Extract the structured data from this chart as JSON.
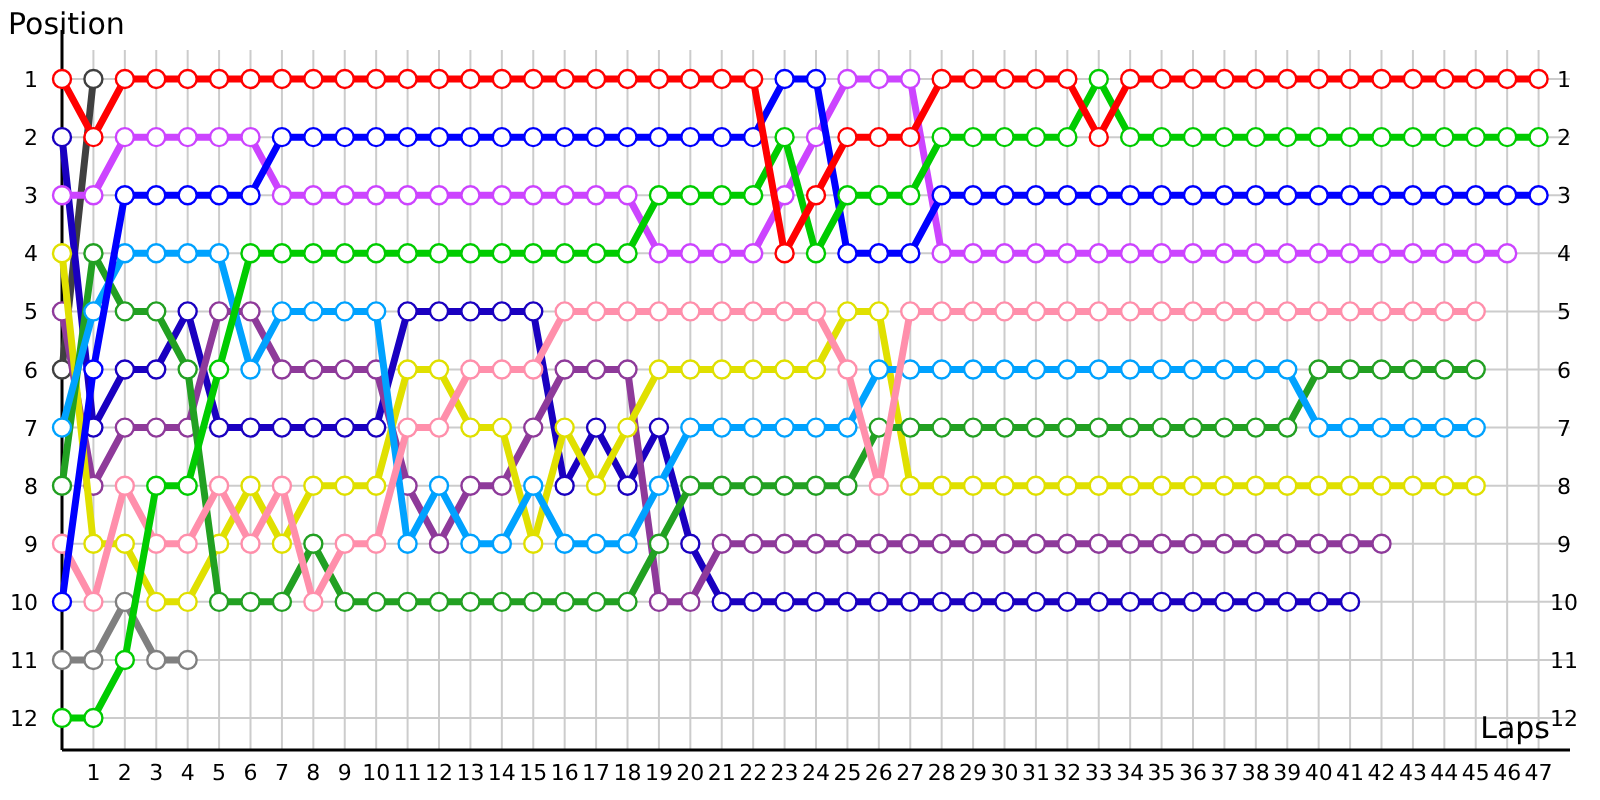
{
  "chart_data": {
    "type": "line",
    "xlabel": "Laps",
    "ylabel": "Position",
    "marker": "circle",
    "grid": true,
    "x": [
      0,
      1,
      2,
      3,
      4,
      5,
      6,
      7,
      8,
      9,
      10,
      11,
      12,
      13,
      14,
      15,
      16,
      17,
      18,
      19,
      20,
      21,
      22,
      23,
      24,
      25,
      26,
      27,
      28,
      29,
      30,
      31,
      32,
      33,
      34,
      35,
      36,
      37,
      38,
      39,
      40,
      41,
      42,
      43,
      44,
      45,
      46,
      47
    ],
    "xlim": [
      0,
      48
    ],
    "xticks": [
      1,
      2,
      3,
      4,
      5,
      6,
      7,
      8,
      9,
      10,
      11,
      12,
      13,
      14,
      15,
      16,
      17,
      18,
      19,
      20,
      21,
      22,
      23,
      24,
      25,
      26,
      27,
      28,
      29,
      30,
      31,
      32,
      33,
      34,
      35,
      36,
      37,
      38,
      39,
      40,
      41,
      42,
      43,
      44,
      45,
      46,
      47
    ],
    "ylim": [
      12.55,
      0.5
    ],
    "yticks": [
      1,
      2,
      3,
      4,
      5,
      6,
      7,
      8,
      9,
      10,
      11,
      12
    ],
    "y2lim": [
      12.55,
      0.5
    ],
    "y2ticks": [
      1,
      2,
      3,
      4,
      5,
      6,
      7,
      8,
      9,
      10,
      11,
      12
    ],
    "series": [
      {
        "color": "#808080",
        "values": [
          11,
          11,
          10,
          11,
          11,
          null,
          null,
          null,
          null,
          null,
          null,
          null,
          null,
          null,
          null,
          null,
          null,
          null,
          null,
          null,
          null,
          null,
          null,
          null,
          null,
          null,
          null,
          null,
          null,
          null,
          null,
          null,
          null,
          null,
          null,
          null,
          null,
          null,
          null,
          null,
          null,
          null,
          null,
          null,
          null,
          null,
          null,
          null
        ]
      },
      {
        "color": "#404040",
        "values": [
          6,
          1,
          null,
          null,
          null,
          null,
          null,
          null,
          null,
          null,
          null,
          null,
          null,
          null,
          null,
          null,
          null,
          null,
          null,
          null,
          null,
          null,
          null,
          null,
          null,
          null,
          null,
          null,
          null,
          null,
          null,
          null,
          null,
          null,
          null,
          null,
          null,
          null,
          null,
          null,
          null,
          null,
          null,
          null,
          null,
          null,
          null,
          null
        ]
      },
      {
        "color": "#1a00c0",
        "values": [
          2,
          7,
          6,
          6,
          5,
          7,
          7,
          7,
          7,
          7,
          7,
          5,
          5,
          5,
          5,
          5,
          8,
          7,
          8,
          7,
          9,
          10,
          10,
          10,
          10,
          10,
          10,
          10,
          10,
          10,
          10,
          10,
          10,
          10,
          10,
          10,
          10,
          10,
          10,
          10,
          10,
          10,
          null,
          null,
          null,
          null,
          null,
          null
        ]
      },
      {
        "color": "#8e3a9a",
        "values": [
          5,
          8,
          7,
          7,
          7,
          5,
          5,
          6,
          6,
          6,
          6,
          8,
          9,
          8,
          8,
          7,
          6,
          6,
          6,
          10,
          10,
          9,
          9,
          9,
          9,
          9,
          9,
          9,
          9,
          9,
          9,
          9,
          9,
          9,
          9,
          9,
          9,
          9,
          9,
          9,
          9,
          9,
          9,
          null,
          null,
          null,
          null,
          null
        ]
      },
      {
        "color": "#e0e000",
        "values": [
          4,
          9,
          9,
          10,
          10,
          9,
          8,
          9,
          8,
          8,
          8,
          6,
          6,
          7,
          7,
          9,
          7,
          8,
          7,
          6,
          6,
          6,
          6,
          6,
          6,
          5,
          5,
          8,
          8,
          8,
          8,
          8,
          8,
          8,
          8,
          8,
          8,
          8,
          8,
          8,
          8,
          8,
          8,
          8,
          8,
          8,
          null,
          null
        ]
      },
      {
        "color": "#22a022",
        "values": [
          8,
          4,
          5,
          5,
          6,
          10,
          10,
          10,
          9,
          10,
          10,
          10,
          10,
          10,
          10,
          10,
          10,
          10,
          10,
          9,
          8,
          8,
          8,
          8,
          8,
          8,
          7,
          7,
          7,
          7,
          7,
          7,
          7,
          7,
          7,
          7,
          7,
          7,
          7,
          7,
          6,
          6,
          6,
          6,
          6,
          6,
          null,
          null
        ]
      },
      {
        "color": "#00a2ff",
        "values": [
          7,
          5,
          4,
          4,
          4,
          4,
          6,
          5,
          5,
          5,
          5,
          9,
          8,
          9,
          9,
          8,
          9,
          9,
          9,
          8,
          7,
          7,
          7,
          7,
          7,
          7,
          6,
          6,
          6,
          6,
          6,
          6,
          6,
          6,
          6,
          6,
          6,
          6,
          6,
          6,
          7,
          7,
          7,
          7,
          7,
          7,
          null,
          null
        ]
      },
      {
        "color": "#ff8fab",
        "values": [
          9,
          10,
          8,
          9,
          9,
          8,
          9,
          8,
          10,
          9,
          9,
          7,
          7,
          6,
          6,
          6,
          5,
          5,
          5,
          5,
          5,
          5,
          5,
          5,
          5,
          6,
          8,
          5,
          5,
          5,
          5,
          5,
          5,
          5,
          5,
          5,
          5,
          5,
          5,
          5,
          5,
          5,
          5,
          5,
          5,
          5,
          null,
          null
        ]
      },
      {
        "color": "#cc44ff",
        "values": [
          3,
          3,
          2,
          2,
          2,
          2,
          2,
          3,
          3,
          3,
          3,
          3,
          3,
          3,
          3,
          3,
          3,
          3,
          3,
          4,
          4,
          4,
          4,
          3,
          2,
          1,
          1,
          1,
          4,
          4,
          4,
          4,
          4,
          4,
          4,
          4,
          4,
          4,
          4,
          4,
          4,
          4,
          4,
          4,
          4,
          4,
          4,
          null
        ]
      },
      {
        "color": "#0000ff",
        "values": [
          10,
          6,
          3,
          3,
          3,
          3,
          3,
          2,
          2,
          2,
          2,
          2,
          2,
          2,
          2,
          2,
          2,
          2,
          2,
          2,
          2,
          2,
          2,
          1,
          1,
          4,
          4,
          4,
          3,
          3,
          3,
          3,
          3,
          3,
          3,
          3,
          3,
          3,
          3,
          3,
          3,
          3,
          3,
          3,
          3,
          3,
          3,
          3
        ]
      },
      {
        "color": "#00cc00",
        "values": [
          12,
          12,
          11,
          8,
          8,
          6,
          4,
          4,
          4,
          4,
          4,
          4,
          4,
          4,
          4,
          4,
          4,
          4,
          4,
          3,
          3,
          3,
          3,
          2,
          4,
          3,
          3,
          3,
          2,
          2,
          2,
          2,
          2,
          1,
          2,
          2,
          2,
          2,
          2,
          2,
          2,
          2,
          2,
          2,
          2,
          2,
          2,
          2
        ]
      },
      {
        "color": "#ff0000",
        "values": [
          1,
          2,
          1,
          1,
          1,
          1,
          1,
          1,
          1,
          1,
          1,
          1,
          1,
          1,
          1,
          1,
          1,
          1,
          1,
          1,
          1,
          1,
          1,
          4,
          3,
          2,
          2,
          2,
          1,
          1,
          1,
          1,
          1,
          2,
          1,
          1,
          1,
          1,
          1,
          1,
          1,
          1,
          1,
          1,
          1,
          1,
          1,
          1
        ]
      }
    ]
  }
}
